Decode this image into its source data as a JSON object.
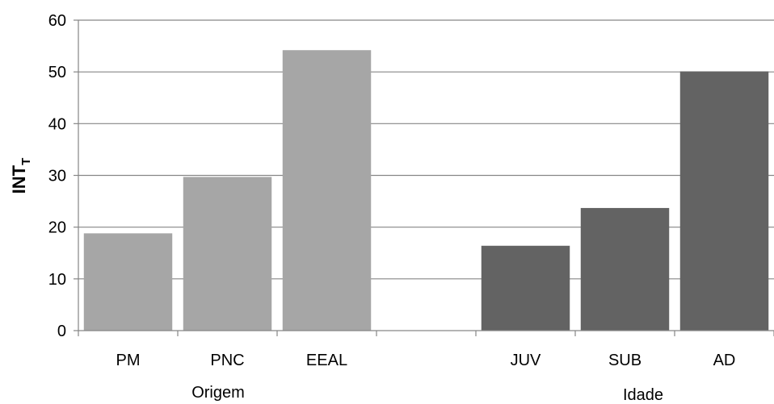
{
  "chart_data": {
    "type": "bar",
    "ylabel": "INT",
    "ylabel_subscript": "T",
    "xlabel": "",
    "ylim": [
      0,
      60
    ],
    "yticks": [
      0,
      10,
      20,
      30,
      40,
      50,
      60
    ],
    "grid": true,
    "legend": "none",
    "slots": [
      "PM",
      "PNC",
      "EEAL",
      "",
      "JUV",
      "SUB",
      "AD"
    ],
    "groups": [
      {
        "name": "Origem",
        "color": "#a6a6a6",
        "categories": [
          "PM",
          "PNC",
          "EEAL"
        ],
        "values": [
          18.8,
          29.7,
          54.2
        ]
      },
      {
        "name": "Idade",
        "color": "#636363",
        "categories": [
          "JUV",
          "SUB",
          "AD"
        ],
        "values": [
          16.4,
          23.7,
          50.1
        ]
      }
    ]
  }
}
